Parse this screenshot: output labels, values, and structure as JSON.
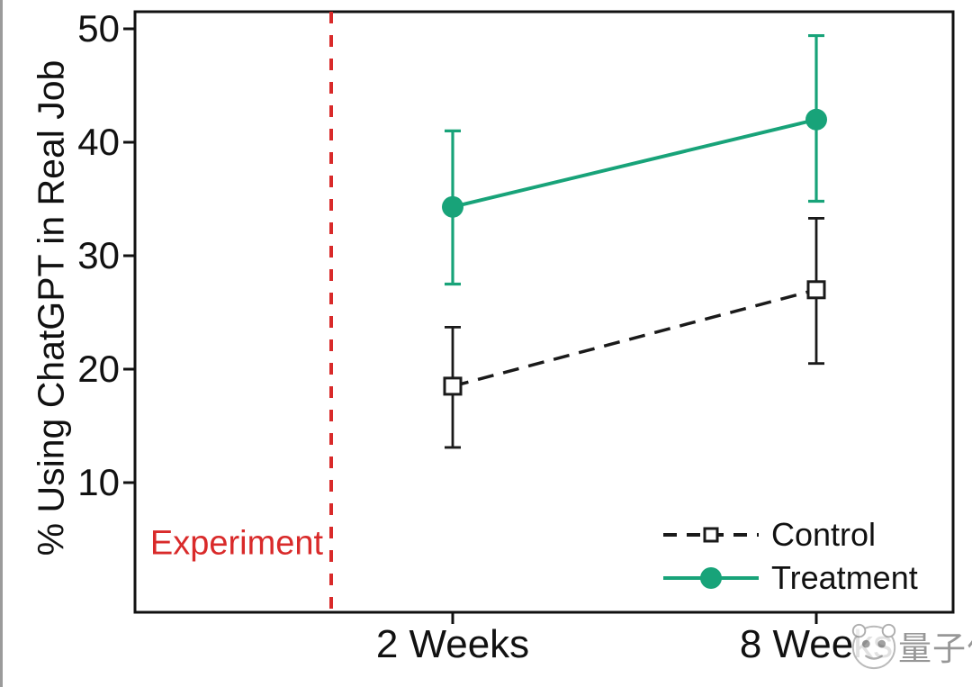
{
  "chart_data": {
    "type": "line",
    "title": "",
    "categories": [
      "2 Weeks",
      "8 Weeks"
    ],
    "ylabel": "% Using ChatGPT in Real Job",
    "xlabel": "",
    "yticks": [
      10,
      20,
      30,
      40,
      50
    ],
    "ylim": [
      -1.5,
      51.5
    ],
    "grid": false,
    "legend_position": "bottom-right inside plot",
    "series": [
      {
        "name": "Control",
        "line_style": "dashed",
        "marker": "open-square",
        "color": "#1a1a1a",
        "values": [
          18.5,
          27.0
        ],
        "ci_low": [
          13.1,
          20.5
        ],
        "ci_high": [
          23.7,
          33.3
        ]
      },
      {
        "name": "Treatment",
        "line_style": "solid",
        "marker": "filled-circle",
        "color": "#18a379",
        "values": [
          34.3,
          42.0
        ],
        "ci_low": [
          27.5,
          34.8
        ],
        "ci_high": [
          41.0,
          49.4
        ]
      }
    ],
    "annotation": {
      "label": "Experiment",
      "color": "#d92a2a",
      "line_style": "dashed-vertical"
    }
  },
  "colors": {
    "axis": "#111111",
    "control": "#1a1a1a",
    "treatment": "#18a379",
    "experiment_red": "#d92a2a",
    "watermark_gray": "#8f8f8f"
  },
  "watermark": {
    "logo_icon": "qbitai-panda-logo",
    "text": "量子位"
  }
}
